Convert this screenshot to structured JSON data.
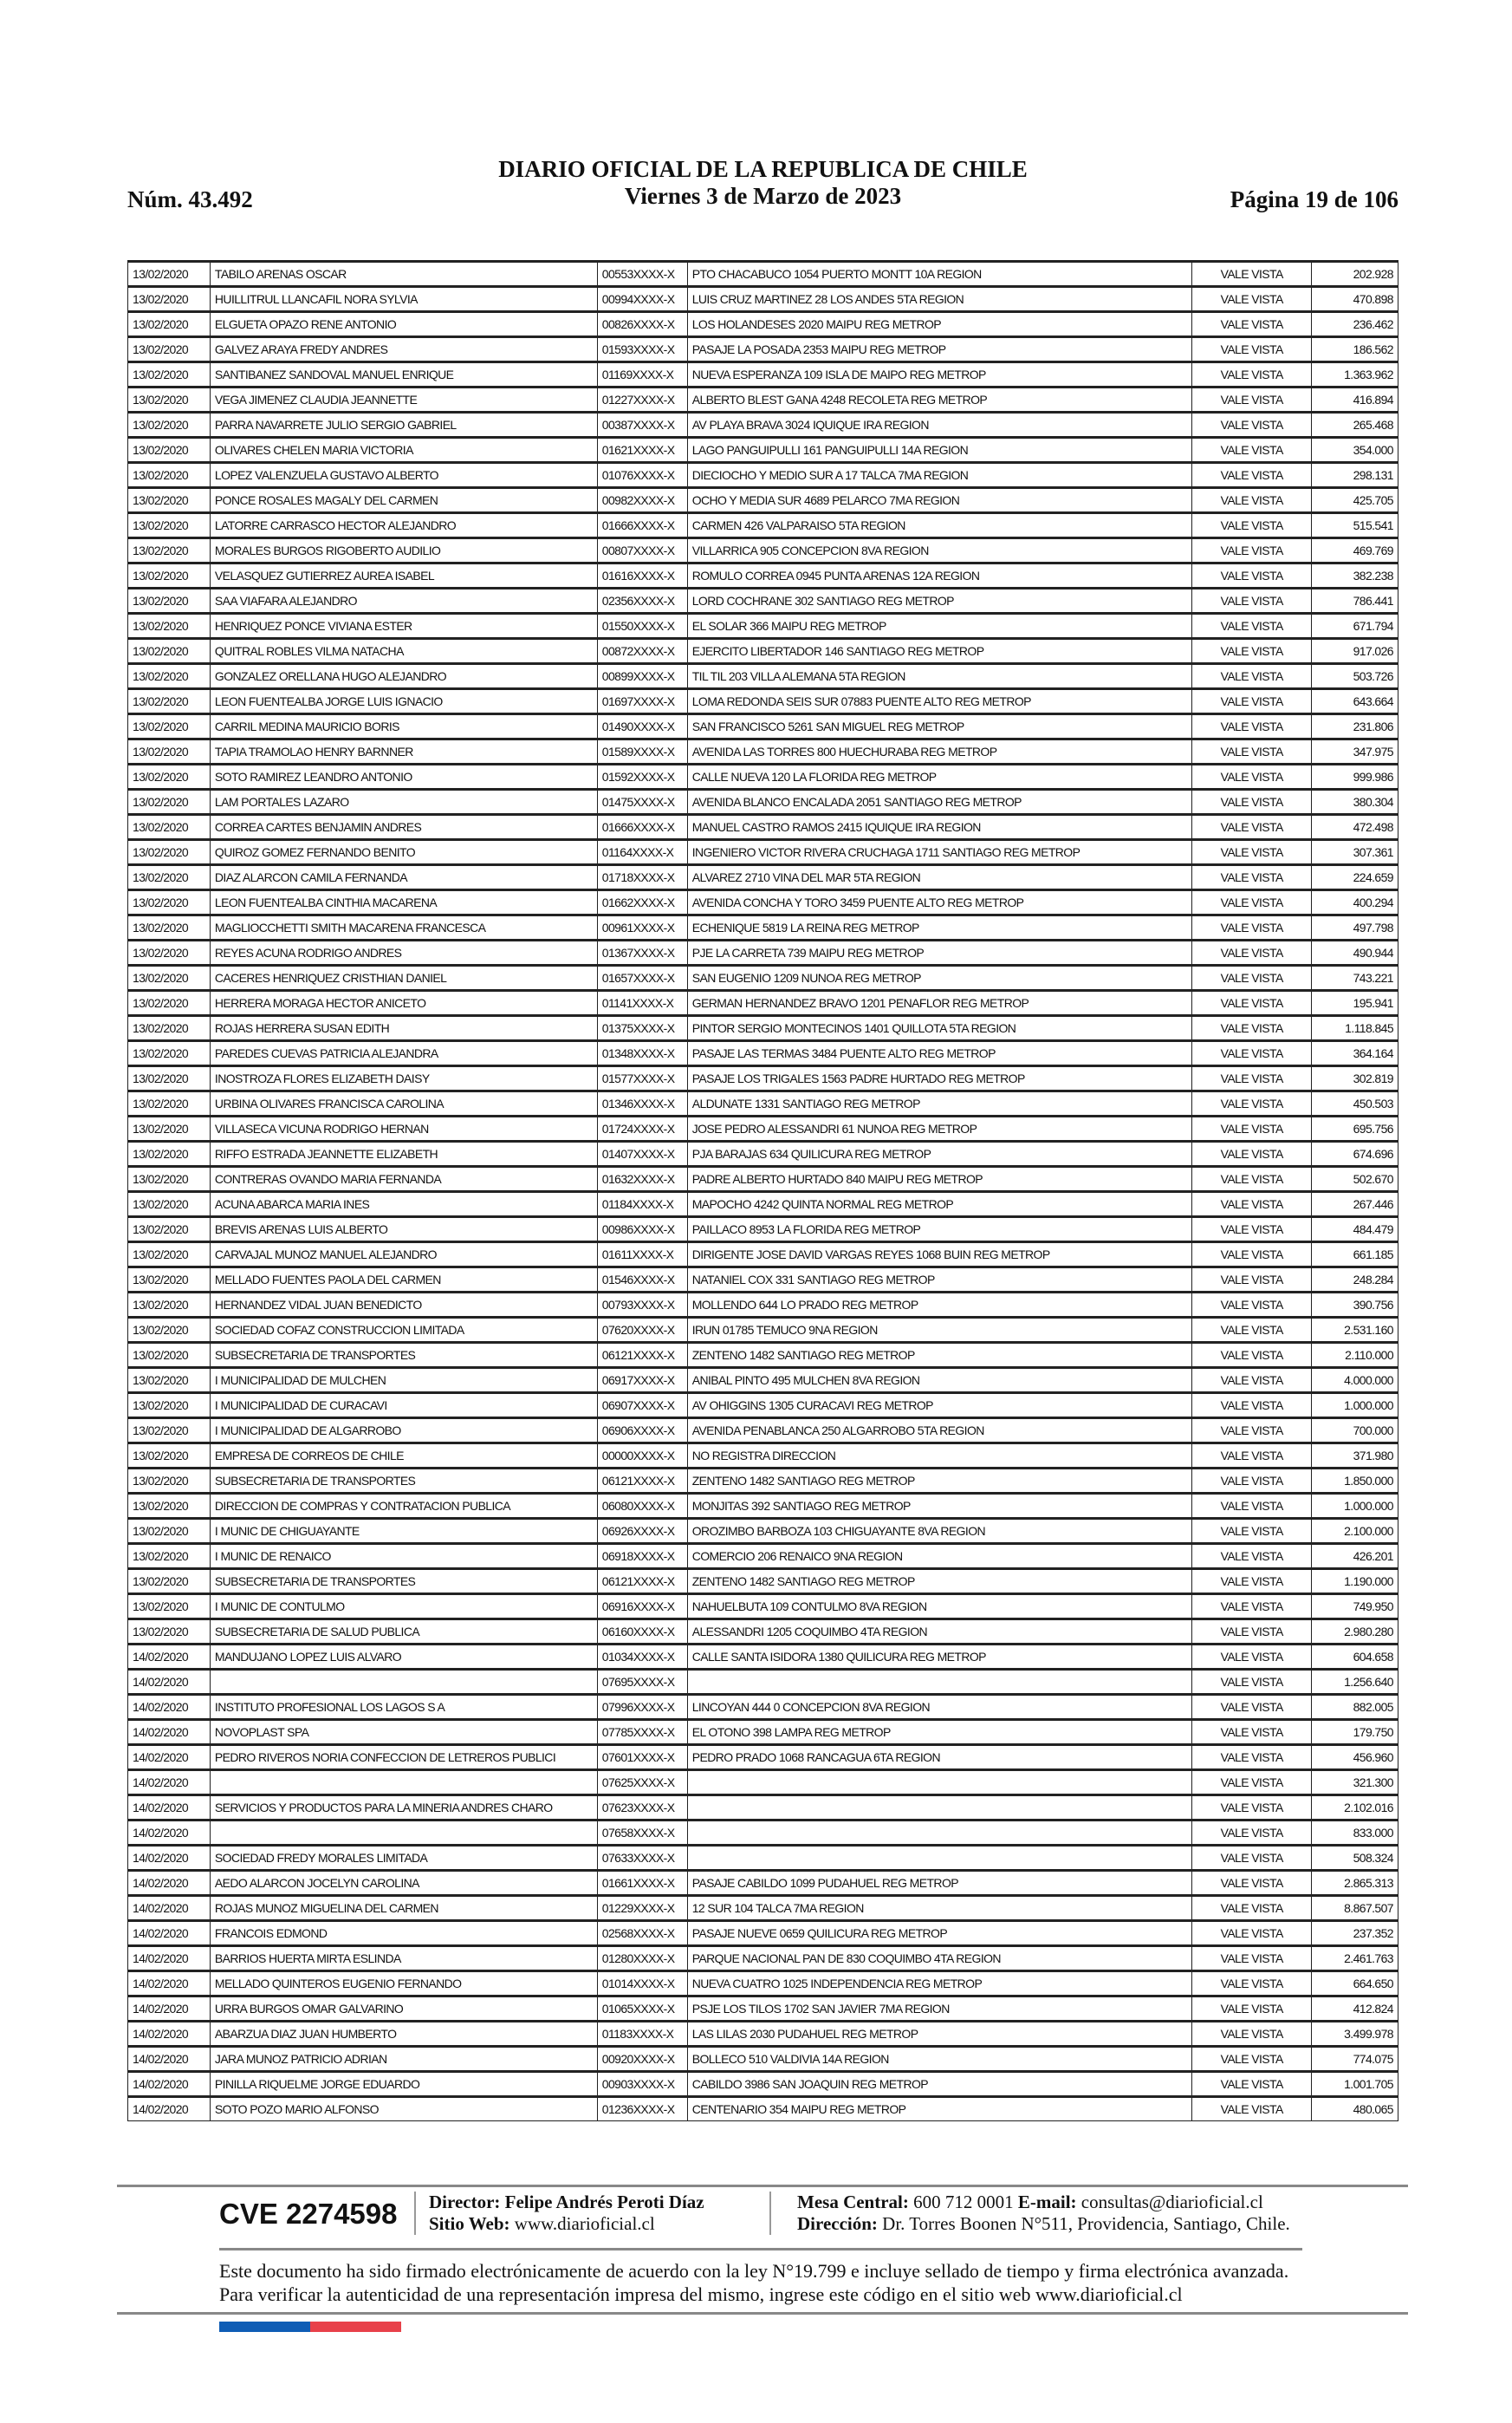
{
  "header": {
    "number": "Núm. 43.492",
    "title": "DIARIO OFICIAL DE LA REPUBLICA DE CHILE",
    "date": "Viernes 3 de Marzo de 2023",
    "page": "Página 19 de 106"
  },
  "rows": [
    [
      "13/02/2020",
      "TABILO ARENAS OSCAR",
      "00553XXXX-X",
      "PTO CHACABUCO 1054 PUERTO MONTT 10A REGION",
      "VALE VISTA",
      "202.928"
    ],
    [
      "13/02/2020",
      "HUILLITRUL LLANCAFIL NORA SYLVIA",
      "00994XXXX-X",
      "LUIS CRUZ MARTINEZ 28 LOS ANDES 5TA REGION",
      "VALE VISTA",
      "470.898"
    ],
    [
      "13/02/2020",
      "ELGUETA OPAZO RENE ANTONIO",
      "00826XXXX-X",
      "LOS HOLANDESES 2020 MAIPU REG METROP",
      "VALE VISTA",
      "236.462"
    ],
    [
      "13/02/2020",
      "GALVEZ ARAYA FREDY ANDRES",
      "01593XXXX-X",
      "PASAJE LA POSADA 2353 MAIPU REG METROP",
      "VALE VISTA",
      "186.562"
    ],
    [
      "13/02/2020",
      "SANTIBANEZ SANDOVAL MANUEL ENRIQUE",
      "01169XXXX-X",
      "NUEVA ESPERANZA 109 ISLA DE MAIPO REG METROP",
      "VALE VISTA",
      "1.363.962"
    ],
    [
      "13/02/2020",
      "VEGA JIMENEZ CLAUDIA JEANNETTE",
      "01227XXXX-X",
      "ALBERTO BLEST GANA 4248 RECOLETA REG METROP",
      "VALE VISTA",
      "416.894"
    ],
    [
      "13/02/2020",
      "PARRA NAVARRETE JULIO SERGIO GABRIEL",
      "00387XXXX-X",
      "AV PLAYA BRAVA 3024 IQUIQUE IRA REGION",
      "VALE VISTA",
      "265.468"
    ],
    [
      "13/02/2020",
      "OLIVARES CHELEN MARIA VICTORIA",
      "01621XXXX-X",
      "LAGO PANGUIPULLI 161 PANGUIPULLI 14A REGION",
      "VALE VISTA",
      "354.000"
    ],
    [
      "13/02/2020",
      "LOPEZ VALENZUELA GUSTAVO ALBERTO",
      "01076XXXX-X",
      "DIECIOCHO Y MEDIO SUR A 17 TALCA 7MA REGION",
      "VALE VISTA",
      "298.131"
    ],
    [
      "13/02/2020",
      "PONCE ROSALES MAGALY DEL CARMEN",
      "00982XXXX-X",
      "OCHO Y MEDIA SUR 4689 PELARCO 7MA REGION",
      "VALE VISTA",
      "425.705"
    ],
    [
      "13/02/2020",
      "LATORRE CARRASCO HECTOR ALEJANDRO",
      "01666XXXX-X",
      "CARMEN 426 VALPARAISO 5TA REGION",
      "VALE VISTA",
      "515.541"
    ],
    [
      "13/02/2020",
      "MORALES BURGOS RIGOBERTO AUDILIO",
      "00807XXXX-X",
      "VILLARRICA 905 CONCEPCION 8VA REGION",
      "VALE VISTA",
      "469.769"
    ],
    [
      "13/02/2020",
      "VELASQUEZ GUTIERREZ AUREA ISABEL",
      "01616XXXX-X",
      "ROMULO CORREA 0945 PUNTA ARENAS 12A REGION",
      "VALE VISTA",
      "382.238"
    ],
    [
      "13/02/2020",
      "SAA VIAFARA ALEJANDRO",
      "02356XXXX-X",
      "LORD COCHRANE 302 SANTIAGO REG METROP",
      "VALE VISTA",
      "786.441"
    ],
    [
      "13/02/2020",
      "HENRIQUEZ PONCE VIVIANA ESTER",
      "01550XXXX-X",
      "EL SOLAR 366 MAIPU REG METROP",
      "VALE VISTA",
      "671.794"
    ],
    [
      "13/02/2020",
      "QUITRAL ROBLES VILMA NATACHA",
      "00872XXXX-X",
      "EJERCITO LIBERTADOR 146 SANTIAGO REG METROP",
      "VALE VISTA",
      "917.026"
    ],
    [
      "13/02/2020",
      "GONZALEZ ORELLANA HUGO ALEJANDRO",
      "00899XXXX-X",
      "TIL TIL 203 VILLA ALEMANA 5TA REGION",
      "VALE VISTA",
      "503.726"
    ],
    [
      "13/02/2020",
      "LEON FUENTEALBA JORGE LUIS IGNACIO",
      "01697XXXX-X",
      "LOMA REDONDA SEIS SUR 07883 PUENTE ALTO REG METROP",
      "VALE VISTA",
      "643.664"
    ],
    [
      "13/02/2020",
      "CARRIL MEDINA MAURICIO BORIS",
      "01490XXXX-X",
      "SAN FRANCISCO 5261 SAN MIGUEL REG METROP",
      "VALE VISTA",
      "231.806"
    ],
    [
      "13/02/2020",
      "TAPIA TRAMOLAO HENRY BARNNER",
      "01589XXXX-X",
      "AVENIDA LAS TORRES 800 HUECHURABA REG METROP",
      "VALE VISTA",
      "347.975"
    ],
    [
      "13/02/2020",
      "SOTO RAMIREZ LEANDRO ANTONIO",
      "01592XXXX-X",
      "CALLE NUEVA 120 LA FLORIDA REG METROP",
      "VALE VISTA",
      "999.986"
    ],
    [
      "13/02/2020",
      "LAM PORTALES LAZARO",
      "01475XXXX-X",
      "AVENIDA BLANCO ENCALADA 2051 SANTIAGO REG METROP",
      "VALE VISTA",
      "380.304"
    ],
    [
      "13/02/2020",
      "CORREA CARTES BENJAMIN ANDRES",
      "01666XXXX-X",
      "MANUEL CASTRO RAMOS 2415 IQUIQUE IRA REGION",
      "VALE VISTA",
      "472.498"
    ],
    [
      "13/02/2020",
      "QUIROZ GOMEZ FERNANDO BENITO",
      "01164XXXX-X",
      "INGENIERO VICTOR RIVERA CRUCHAGA 1711 SANTIAGO REG METROP",
      "VALE VISTA",
      "307.361"
    ],
    [
      "13/02/2020",
      "DIAZ ALARCON CAMILA FERNANDA",
      "01718XXXX-X",
      "ALVAREZ 2710 VINA DEL MAR 5TA REGION",
      "VALE VISTA",
      "224.659"
    ],
    [
      "13/02/2020",
      "LEON FUENTEALBA CINTHIA MACARENA",
      "01662XXXX-X",
      "AVENIDA CONCHA Y TORO 3459 PUENTE ALTO REG METROP",
      "VALE VISTA",
      "400.294"
    ],
    [
      "13/02/2020",
      "MAGLIOCCHETTI SMITH MACARENA FRANCESCA",
      "00961XXXX-X",
      "ECHENIQUE 5819 LA REINA REG METROP",
      "VALE VISTA",
      "497.798"
    ],
    [
      "13/02/2020",
      "REYES ACUNA RODRIGO ANDRES",
      "01367XXXX-X",
      "PJE LA CARRETA 739 MAIPU REG METROP",
      "VALE VISTA",
      "490.944"
    ],
    [
      "13/02/2020",
      "CACERES HENRIQUEZ CRISTHIAN DANIEL",
      "01657XXXX-X",
      "SAN EUGENIO 1209 NUNOA REG METROP",
      "VALE VISTA",
      "743.221"
    ],
    [
      "13/02/2020",
      "HERRERA MORAGA HECTOR ANICETO",
      "01141XXXX-X",
      "GERMAN HERNANDEZ BRAVO 1201 PENAFLOR REG METROP",
      "VALE VISTA",
      "195.941"
    ],
    [
      "13/02/2020",
      "ROJAS HERRERA SUSAN EDITH",
      "01375XXXX-X",
      "PINTOR SERGIO MONTECINOS 1401 QUILLOTA 5TA REGION",
      "VALE VISTA",
      "1.118.845"
    ],
    [
      "13/02/2020",
      "PAREDES CUEVAS PATRICIA ALEJANDRA",
      "01348XXXX-X",
      "PASAJE LAS TERMAS 3484 PUENTE ALTO REG METROP",
      "VALE VISTA",
      "364.164"
    ],
    [
      "13/02/2020",
      "INOSTROZA FLORES ELIZABETH DAISY",
      "01577XXXX-X",
      "PASAJE LOS TRIGALES 1563 PADRE HURTADO REG METROP",
      "VALE VISTA",
      "302.819"
    ],
    [
      "13/02/2020",
      "URBINA OLIVARES FRANCISCA CAROLINA",
      "01346XXXX-X",
      "ALDUNATE 1331 SANTIAGO REG METROP",
      "VALE VISTA",
      "450.503"
    ],
    [
      "13/02/2020",
      "VILLASECA VICUNA RODRIGO HERNAN",
      "01724XXXX-X",
      "JOSE PEDRO ALESSANDRI 61 NUNOA REG METROP",
      "VALE VISTA",
      "695.756"
    ],
    [
      "13/02/2020",
      "RIFFO ESTRADA JEANNETTE ELIZABETH",
      "01407XXXX-X",
      "PJA BARAJAS 634 QUILICURA REG METROP",
      "VALE VISTA",
      "674.696"
    ],
    [
      "13/02/2020",
      "CONTRERAS OVANDO MARIA FERNANDA",
      "01632XXXX-X",
      "PADRE ALBERTO HURTADO 840 MAIPU REG METROP",
      "VALE VISTA",
      "502.670"
    ],
    [
      "13/02/2020",
      "ACUNA ABARCA MARIA INES",
      "01184XXXX-X",
      "MAPOCHO 4242 QUINTA NORMAL REG METROP",
      "VALE VISTA",
      "267.446"
    ],
    [
      "13/02/2020",
      "BREVIS ARENAS LUIS ALBERTO",
      "00986XXXX-X",
      "PAILLACO 8953 LA FLORIDA REG METROP",
      "VALE VISTA",
      "484.479"
    ],
    [
      "13/02/2020",
      "CARVAJAL MUNOZ MANUEL ALEJANDRO",
      "01611XXXX-X",
      "DIRIGENTE JOSE DAVID VARGAS REYES 1068 BUIN REG METROP",
      "VALE VISTA",
      "661.185"
    ],
    [
      "13/02/2020",
      "MELLADO FUENTES PAOLA DEL CARMEN",
      "01546XXXX-X",
      "NATANIEL COX 331 SANTIAGO REG METROP",
      "VALE VISTA",
      "248.284"
    ],
    [
      "13/02/2020",
      "HERNANDEZ VIDAL JUAN BENEDICTO",
      "00793XXXX-X",
      "MOLLENDO 644 LO PRADO REG METROP",
      "VALE VISTA",
      "390.756"
    ],
    [
      "13/02/2020",
      "SOCIEDAD COFAZ CONSTRUCCION LIMITADA",
      "07620XXXX-X",
      "IRUN 01785 TEMUCO 9NA REGION",
      "VALE VISTA",
      "2.531.160"
    ],
    [
      "13/02/2020",
      "SUBSECRETARIA DE TRANSPORTES",
      "06121XXXX-X",
      "ZENTENO 1482 SANTIAGO REG METROP",
      "VALE VISTA",
      "2.110.000"
    ],
    [
      "13/02/2020",
      "I MUNICIPALIDAD DE MULCHEN",
      "06917XXXX-X",
      "ANIBAL PINTO 495 MULCHEN 8VA REGION",
      "VALE VISTA",
      "4.000.000"
    ],
    [
      "13/02/2020",
      "I MUNICIPALIDAD DE CURACAVI",
      "06907XXXX-X",
      "AV OHIGGINS 1305 CURACAVI REG METROP",
      "VALE VISTA",
      "1.000.000"
    ],
    [
      "13/02/2020",
      "I MUNICIPALIDAD DE ALGARROBO",
      "06906XXXX-X",
      "AVENIDA PENABLANCA 250 ALGARROBO 5TA REGION",
      "VALE VISTA",
      "700.000"
    ],
    [
      "13/02/2020",
      "EMPRESA DE CORREOS DE CHILE",
      "00000XXXX-X",
      "NO REGISTRA DIRECCION",
      "VALE VISTA",
      "371.980"
    ],
    [
      "13/02/2020",
      "SUBSECRETARIA DE TRANSPORTES",
      "06121XXXX-X",
      "ZENTENO 1482 SANTIAGO REG METROP",
      "VALE VISTA",
      "1.850.000"
    ],
    [
      "13/02/2020",
      "DIRECCION DE COMPRAS Y CONTRATACION PUBLICA",
      "06080XXXX-X",
      "MONJITAS 392 SANTIAGO REG METROP",
      "VALE VISTA",
      "1.000.000"
    ],
    [
      "13/02/2020",
      "I MUNIC DE CHIGUAYANTE",
      "06926XXXX-X",
      "OROZIMBO BARBOZA 103 CHIGUAYANTE 8VA REGION",
      "VALE VISTA",
      "2.100.000"
    ],
    [
      "13/02/2020",
      "I MUNIC DE RENAICO",
      "06918XXXX-X",
      "COMERCIO 206 RENAICO 9NA REGION",
      "VALE VISTA",
      "426.201"
    ],
    [
      "13/02/2020",
      "SUBSECRETARIA DE TRANSPORTES",
      "06121XXXX-X",
      "ZENTENO 1482 SANTIAGO REG METROP",
      "VALE VISTA",
      "1.190.000"
    ],
    [
      "13/02/2020",
      "I MUNIC DE CONTULMO",
      "06916XXXX-X",
      "NAHUELBUTA 109 CONTULMO 8VA REGION",
      "VALE VISTA",
      "749.950"
    ],
    [
      "13/02/2020",
      "SUBSECRETARIA DE SALUD PUBLICA",
      "06160XXXX-X",
      "ALESSANDRI 1205 COQUIMBO 4TA REGION",
      "VALE VISTA",
      "2.980.280"
    ],
    [
      "14/02/2020",
      "MANDUJANO LOPEZ LUIS ALVARO",
      "01034XXXX-X",
      "CALLE SANTA ISIDORA 1380 QUILICURA REG METROP",
      "VALE VISTA",
      "604.658"
    ],
    [
      "14/02/2020",
      "",
      "07695XXXX-X",
      "",
      "VALE VISTA",
      "1.256.640"
    ],
    [
      "14/02/2020",
      "INSTITUTO PROFESIONAL LOS LAGOS S A",
      "07996XXXX-X",
      "LINCOYAN 444 0 CONCEPCION 8VA REGION",
      "VALE VISTA",
      "882.005"
    ],
    [
      "14/02/2020",
      "NOVOPLAST SPA",
      "07785XXXX-X",
      "EL OTONO 398 LAMPA REG METROP",
      "VALE VISTA",
      "179.750"
    ],
    [
      "14/02/2020",
      "PEDRO RIVEROS NORIA CONFECCION DE LETREROS PUBLICI",
      "07601XXXX-X",
      "PEDRO PRADO 1068 RANCAGUA 6TA REGION",
      "VALE VISTA",
      "456.960"
    ],
    [
      "14/02/2020",
      "",
      "07625XXXX-X",
      "",
      "VALE VISTA",
      "321.300"
    ],
    [
      "14/02/2020",
      "SERVICIOS Y PRODUCTOS PARA LA MINERIA ANDRES CHARO",
      "07623XXXX-X",
      "",
      "VALE VISTA",
      "2.102.016"
    ],
    [
      "14/02/2020",
      "",
      "07658XXXX-X",
      "",
      "VALE VISTA",
      "833.000"
    ],
    [
      "14/02/2020",
      "SOCIEDAD FREDY MORALES LIMITADA",
      "07633XXXX-X",
      "",
      "VALE VISTA",
      "508.324"
    ],
    [
      "14/02/2020",
      "AEDO ALARCON JOCELYN CAROLINA",
      "01661XXXX-X",
      "PASAJE CABILDO 1099 PUDAHUEL REG METROP",
      "VALE VISTA",
      "2.865.313"
    ],
    [
      "14/02/2020",
      "ROJAS MUNOZ MIGUELINA DEL CARMEN",
      "01229XXXX-X",
      "12 SUR 104 TALCA 7MA REGION",
      "VALE VISTA",
      "8.867.507"
    ],
    [
      "14/02/2020",
      "FRANCOIS EDMOND",
      "02568XXXX-X",
      "PASAJE NUEVE 0659 QUILICURA REG METROP",
      "VALE VISTA",
      "237.352"
    ],
    [
      "14/02/2020",
      "BARRIOS HUERTA MIRTA ESLINDA",
      "01280XXXX-X",
      "PARQUE NACIONAL PAN DE 830 COQUIMBO 4TA REGION",
      "VALE VISTA",
      "2.461.763"
    ],
    [
      "14/02/2020",
      "MELLADO QUINTEROS EUGENIO FERNANDO",
      "01014XXXX-X",
      "NUEVA CUATRO 1025 INDEPENDENCIA REG METROP",
      "VALE VISTA",
      "664.650"
    ],
    [
      "14/02/2020",
      "URRA BURGOS OMAR GALVARINO",
      "01065XXXX-X",
      "PSJE LOS TILOS 1702 SAN JAVIER 7MA REGION",
      "VALE VISTA",
      "412.824"
    ],
    [
      "14/02/2020",
      "ABARZUA DIAZ JUAN HUMBERTO",
      "01183XXXX-X",
      "LAS LILAS 2030 PUDAHUEL REG METROP",
      "VALE VISTA",
      "3.499.978"
    ],
    [
      "14/02/2020",
      "JARA MUNOZ PATRICIO ADRIAN",
      "00920XXXX-X",
      "BOLLECO 510 VALDIVIA 14A REGION",
      "VALE VISTA",
      "774.075"
    ],
    [
      "14/02/2020",
      "PINILLA RIQUELME JORGE EDUARDO",
      "00903XXXX-X",
      "CABILDO 3986 SAN JOAQUIN REG METROP",
      "VALE VISTA",
      "1.001.705"
    ],
    [
      "14/02/2020",
      "SOTO POZO MARIO ALFONSO",
      "01236XXXX-X",
      "CENTENARIO 354 MAIPU REG METROP",
      "VALE VISTA",
      "480.065"
    ]
  ],
  "footer": {
    "cve": "CVE 2274598",
    "director_label": "Director:",
    "director": "Felipe Andrés Peroti Díaz",
    "web_label": "Sitio Web:",
    "web": "www.diarioficial.cl",
    "phone_label": "Mesa Central:",
    "phone": "600 712 0001",
    "email_label": "E-mail:",
    "email": "consultas@diarioficial.cl",
    "address_label": "Dirección:",
    "address": "Dr. Torres Boonen N°511, Providencia, Santiago, Chile.",
    "legal": "Este documento ha sido firmado electrónicamente de acuerdo con la ley N°19.799 e incluye sellado de tiempo y firma electrónica avanzada. Para verificar la autenticidad de una representación impresa del mismo, ingrese este código en el sitio web www.diarioficial.cl",
    "flag_colors": [
      "#0f5db5",
      "#e8414a"
    ]
  }
}
